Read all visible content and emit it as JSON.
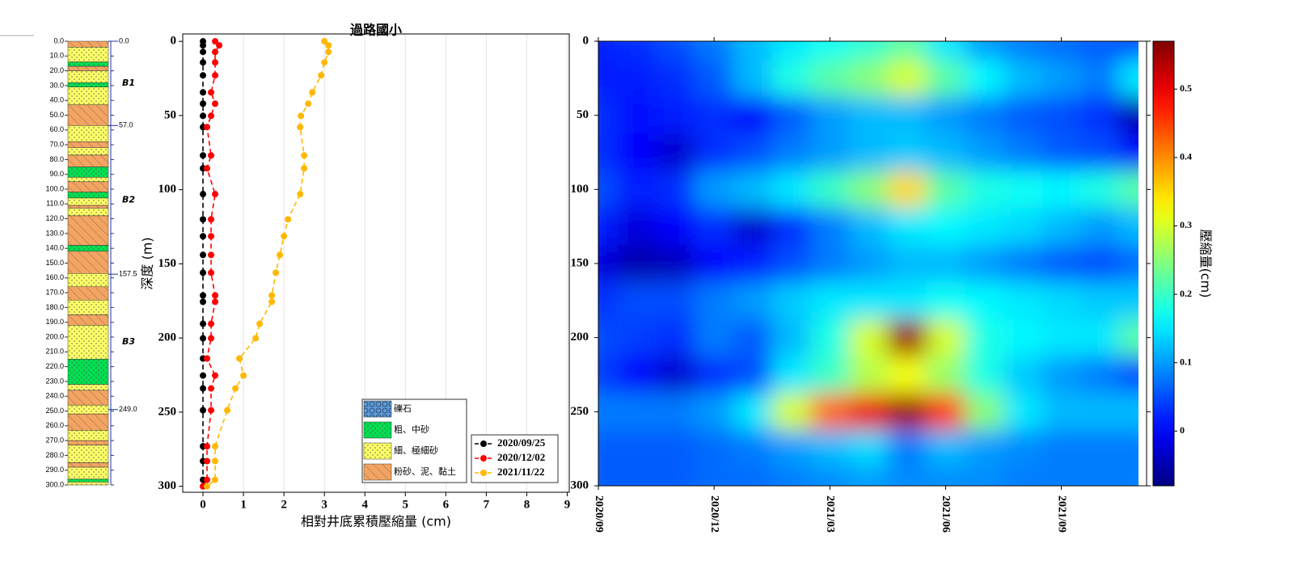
{
  "chart_data": [
    {
      "type": "strata",
      "ylim": [
        0,
        300
      ],
      "yticks": [
        {
          "value": 0,
          "label": "0.0"
        },
        {
          "value": 10,
          "label": "10.0"
        },
        {
          "value": 20,
          "label": "20.0"
        },
        {
          "value": 30,
          "label": "30.0"
        },
        {
          "value": 40,
          "label": "40.0"
        },
        {
          "value": 50,
          "label": "50.0"
        },
        {
          "value": 60,
          "label": "60.0"
        },
        {
          "value": 70,
          "label": "70.0"
        },
        {
          "value": 80,
          "label": "80.0"
        },
        {
          "value": 90,
          "label": "90.0"
        },
        {
          "value": 100,
          "label": "100.0"
        },
        {
          "value": 110,
          "label": "110.0"
        },
        {
          "value": 120,
          "label": "120.0"
        },
        {
          "value": 130,
          "label": "130.0"
        },
        {
          "value": 140,
          "label": "140.0"
        },
        {
          "value": 150,
          "label": "150.0"
        },
        {
          "value": 160,
          "label": "160.0"
        },
        {
          "value": 170,
          "label": "170.0"
        },
        {
          "value": 180,
          "label": "180.0"
        },
        {
          "value": 190,
          "label": "190.0"
        },
        {
          "value": 200,
          "label": "200.0"
        },
        {
          "value": 210,
          "label": "210.0"
        },
        {
          "value": 220,
          "label": "220.0"
        },
        {
          "value": 230,
          "label": "230.0"
        },
        {
          "value": 240,
          "label": "240.0"
        },
        {
          "value": 250,
          "label": "250.0"
        },
        {
          "value": 260,
          "label": "260.0"
        },
        {
          "value": 270,
          "label": "270.0"
        },
        {
          "value": 280,
          "label": "280.0"
        },
        {
          "value": 290,
          "label": "290.0"
        },
        {
          "value": 300,
          "label": "300.0"
        }
      ],
      "boundaries": [
        {
          "value": 0,
          "label": "0.0"
        },
        {
          "value": 57,
          "label": "57.0"
        },
        {
          "value": 157.5,
          "label": "157.5"
        },
        {
          "value": 249,
          "label": "249.0"
        }
      ],
      "units": [
        "B1",
        "B2",
        "B3"
      ],
      "legend": [
        {
          "name": "礫石",
          "color": "#5b9bd5",
          "pattern": "circles"
        },
        {
          "name": "粗、中砂",
          "color": "#00e050",
          "pattern": "dots"
        },
        {
          "name": "細、極細砂",
          "color": "#ffff66",
          "pattern": "dots"
        },
        {
          "name": "粉砂、泥、黏土",
          "color": "#f4a460",
          "pattern": "hatch"
        }
      ],
      "layers": [
        {
          "top": 0,
          "bottom": 4,
          "color": "#f4a460"
        },
        {
          "top": 4,
          "bottom": 14,
          "color": "#ffff66"
        },
        {
          "top": 14,
          "bottom": 17,
          "color": "#00e050"
        },
        {
          "top": 17,
          "bottom": 20,
          "color": "#f4a460"
        },
        {
          "top": 20,
          "bottom": 28,
          "color": "#ffff66"
        },
        {
          "top": 28,
          "bottom": 31,
          "color": "#00e050"
        },
        {
          "top": 31,
          "bottom": 43,
          "color": "#ffff66"
        },
        {
          "top": 43,
          "bottom": 57,
          "color": "#f4a460"
        },
        {
          "top": 57,
          "bottom": 68,
          "color": "#ffff66"
        },
        {
          "top": 68,
          "bottom": 72,
          "color": "#f4a460"
        },
        {
          "top": 72,
          "bottom": 77,
          "color": "#ffff66"
        },
        {
          "top": 77,
          "bottom": 85,
          "color": "#f4a460"
        },
        {
          "top": 85,
          "bottom": 92,
          "color": "#00e050"
        },
        {
          "top": 92,
          "bottom": 95,
          "color": "#ffff66"
        },
        {
          "top": 95,
          "bottom": 102,
          "color": "#f4a460"
        },
        {
          "top": 102,
          "bottom": 106,
          "color": "#00e050"
        },
        {
          "top": 106,
          "bottom": 111,
          "color": "#ffff66"
        },
        {
          "top": 111,
          "bottom": 113,
          "color": "#f4a460"
        },
        {
          "top": 113,
          "bottom": 118,
          "color": "#ffff66"
        },
        {
          "top": 118,
          "bottom": 138,
          "color": "#f4a460"
        },
        {
          "top": 138,
          "bottom": 142,
          "color": "#00e050"
        },
        {
          "top": 142,
          "bottom": 157,
          "color": "#f4a460"
        },
        {
          "top": 157,
          "bottom": 166,
          "color": "#ffff66"
        },
        {
          "top": 166,
          "bottom": 175,
          "color": "#f4a460"
        },
        {
          "top": 175,
          "bottom": 185,
          "color": "#ffff66"
        },
        {
          "top": 185,
          "bottom": 192,
          "color": "#f4a460"
        },
        {
          "top": 192,
          "bottom": 215,
          "color": "#ffff66"
        },
        {
          "top": 215,
          "bottom": 232,
          "color": "#00e050"
        },
        {
          "top": 232,
          "bottom": 236,
          "color": "#ffff66"
        },
        {
          "top": 236,
          "bottom": 246,
          "color": "#f4a460"
        },
        {
          "top": 246,
          "bottom": 252,
          "color": "#ffff66"
        },
        {
          "top": 252,
          "bottom": 263,
          "color": "#f4a460"
        },
        {
          "top": 263,
          "bottom": 270,
          "color": "#ffff66"
        },
        {
          "top": 270,
          "bottom": 273,
          "color": "#f4a460"
        },
        {
          "top": 273,
          "bottom": 285,
          "color": "#ffff66"
        },
        {
          "top": 285,
          "bottom": 288,
          "color": "#f4a460"
        },
        {
          "top": 288,
          "bottom": 296,
          "color": "#ffff66"
        },
        {
          "top": 296,
          "bottom": 298,
          "color": "#00e050"
        },
        {
          "top": 298,
          "bottom": 300,
          "color": "#ffff66"
        }
      ]
    },
    {
      "type": "line",
      "title": "過路國小",
      "xlabel": "相對井底累積壓縮量 (cm)",
      "ylabel": "深度 (m)",
      "xlim": [
        -0.5,
        9.05
      ],
      "ylim": [
        -5,
        304
      ],
      "y_inverted": true,
      "xticks": [
        0,
        1,
        2,
        3,
        4,
        5,
        6,
        7,
        8,
        9
      ],
      "yticks": [
        0,
        50,
        100,
        150,
        200,
        250,
        300
      ],
      "grid": "x",
      "legend": "lower right",
      "y": [
        0,
        2.7,
        7.1,
        14.2,
        22.9,
        34.4,
        42,
        50.2,
        57.8,
        76.9,
        85.6,
        103,
        120,
        131.4,
        144,
        156,
        171.3,
        175.6,
        190.4,
        200.2,
        213.8,
        225.3,
        234,
        248.7,
        273,
        283,
        295.6,
        300
      ],
      "series": [
        {
          "name": "2020/09/25",
          "color": "#000000",
          "values": [
            0,
            0,
            0,
            0,
            0,
            0,
            0,
            0,
            0,
            0,
            0,
            0,
            0,
            0,
            0,
            0,
            0,
            0,
            0,
            0,
            0,
            0,
            0,
            0,
            0,
            0,
            0,
            0
          ]
        },
        {
          "name": "2020/12/02",
          "color": "#ff0000",
          "values": [
            0.3,
            0.4,
            0.3,
            0.3,
            0.3,
            0.2,
            0.3,
            0.2,
            0.1,
            0.2,
            0.1,
            0.3,
            0.2,
            0.2,
            0.2,
            0.2,
            0.3,
            0.3,
            0.2,
            0.2,
            0.1,
            0.3,
            0.2,
            0.2,
            0.1,
            0.1,
            0.1,
            0
          ]
        },
        {
          "name": "2021/11/22",
          "color": "#ffb800",
          "values": [
            3.0,
            3.1,
            3.1,
            3.0,
            2.92,
            2.7,
            2.6,
            2.42,
            2.4,
            2.5,
            2.5,
            2.4,
            2.1,
            2.0,
            1.9,
            1.8,
            1.7,
            1.7,
            1.4,
            1.3,
            0.9,
            1.0,
            0.8,
            0.6,
            0.3,
            0.3,
            0.3,
            0.1
          ]
        }
      ]
    },
    {
      "type": "heatmap",
      "colormap": "jet",
      "colorbar_label": "壓縮量(cm)",
      "xlim": [
        "2020/09",
        "2021/11"
      ],
      "xticks": [
        "2020/09",
        "2020/12",
        "2021/03",
        "2021/06",
        "2021/09"
      ],
      "ylim": [
        0,
        300
      ],
      "y_inverted": true,
      "yticks": [
        0,
        50,
        100,
        150,
        200,
        250,
        300
      ],
      "zlim": [
        -0.08,
        0.57
      ],
      "zticks": [
        0,
        0.1,
        0.2,
        0.3,
        0.4,
        0.5
      ],
      "x": [
        "2020/09",
        "2020/10",
        "2020/11",
        "2020/12",
        "2021/01",
        "2021/02",
        "2021/03",
        "2021/04",
        "2021/05",
        "2021/06",
        "2021/07",
        "2021/08",
        "2021/09",
        "2021/10",
        "2021/11"
      ],
      "y": [
        0,
        25,
        50,
        75,
        100,
        125,
        150,
        175,
        200,
        225,
        250,
        275,
        300
      ],
      "values": [
        [
          0.02,
          0.03,
          0.05,
          0.08,
          0.12,
          0.15,
          0.17,
          0.19,
          0.22,
          0.15,
          0.1,
          0.08,
          0.07,
          0.06,
          0.05
        ],
        [
          0.02,
          0.02,
          0.03,
          0.06,
          0.12,
          0.18,
          0.22,
          0.25,
          0.3,
          0.22,
          0.16,
          0.12,
          0.1,
          0.08,
          0.15
        ],
        [
          0.03,
          0.01,
          0.02,
          0.03,
          0.0,
          0.06,
          0.1,
          0.12,
          0.12,
          0.1,
          0.08,
          0.06,
          0.05,
          0.03,
          -0.05
        ],
        [
          0.03,
          0.0,
          -0.03,
          0.03,
          0.05,
          0.08,
          0.1,
          0.12,
          0.13,
          0.12,
          0.1,
          0.08,
          0.06,
          0.05,
          0.0
        ],
        [
          0.05,
          0.02,
          0.03,
          0.1,
          0.12,
          0.15,
          0.2,
          0.25,
          0.35,
          0.22,
          0.18,
          0.17,
          0.16,
          0.18,
          0.22
        ],
        [
          0.02,
          -0.02,
          0.0,
          0.03,
          -0.03,
          0.03,
          0.08,
          0.12,
          0.15,
          0.16,
          0.15,
          0.14,
          0.12,
          0.1,
          0.12
        ],
        [
          -0.02,
          -0.05,
          -0.04,
          0.0,
          0.02,
          0.05,
          0.08,
          0.1,
          0.12,
          0.12,
          0.1,
          0.08,
          0.06,
          0.05,
          0.07
        ],
        [
          0.03,
          0.05,
          0.05,
          0.08,
          0.1,
          0.13,
          0.15,
          0.15,
          0.15,
          0.17,
          0.16,
          0.15,
          0.14,
          0.13,
          0.13
        ],
        [
          0.05,
          0.04,
          0.03,
          0.08,
          0.06,
          0.12,
          0.18,
          0.3,
          0.55,
          0.3,
          0.18,
          0.16,
          0.15,
          0.15,
          0.22
        ],
        [
          0.04,
          0.0,
          -0.03,
          0.03,
          0.05,
          0.15,
          0.2,
          0.28,
          0.32,
          0.26,
          0.18,
          0.13,
          0.1,
          0.08,
          0.05
        ],
        [
          0.08,
          0.08,
          0.08,
          0.1,
          0.15,
          0.3,
          0.42,
          0.5,
          0.55,
          0.45,
          0.25,
          0.15,
          0.12,
          0.12,
          0.12
        ],
        [
          0.06,
          0.06,
          0.06,
          0.07,
          0.08,
          0.1,
          0.12,
          0.14,
          0.08,
          0.12,
          0.1,
          0.09,
          0.08,
          0.08,
          0.08
        ],
        [
          0.06,
          0.06,
          0.06,
          0.07,
          0.07,
          0.08,
          0.09,
          0.1,
          0.09,
          0.09,
          0.09,
          0.08,
          0.08,
          0.08,
          0.08
        ]
      ]
    }
  ]
}
